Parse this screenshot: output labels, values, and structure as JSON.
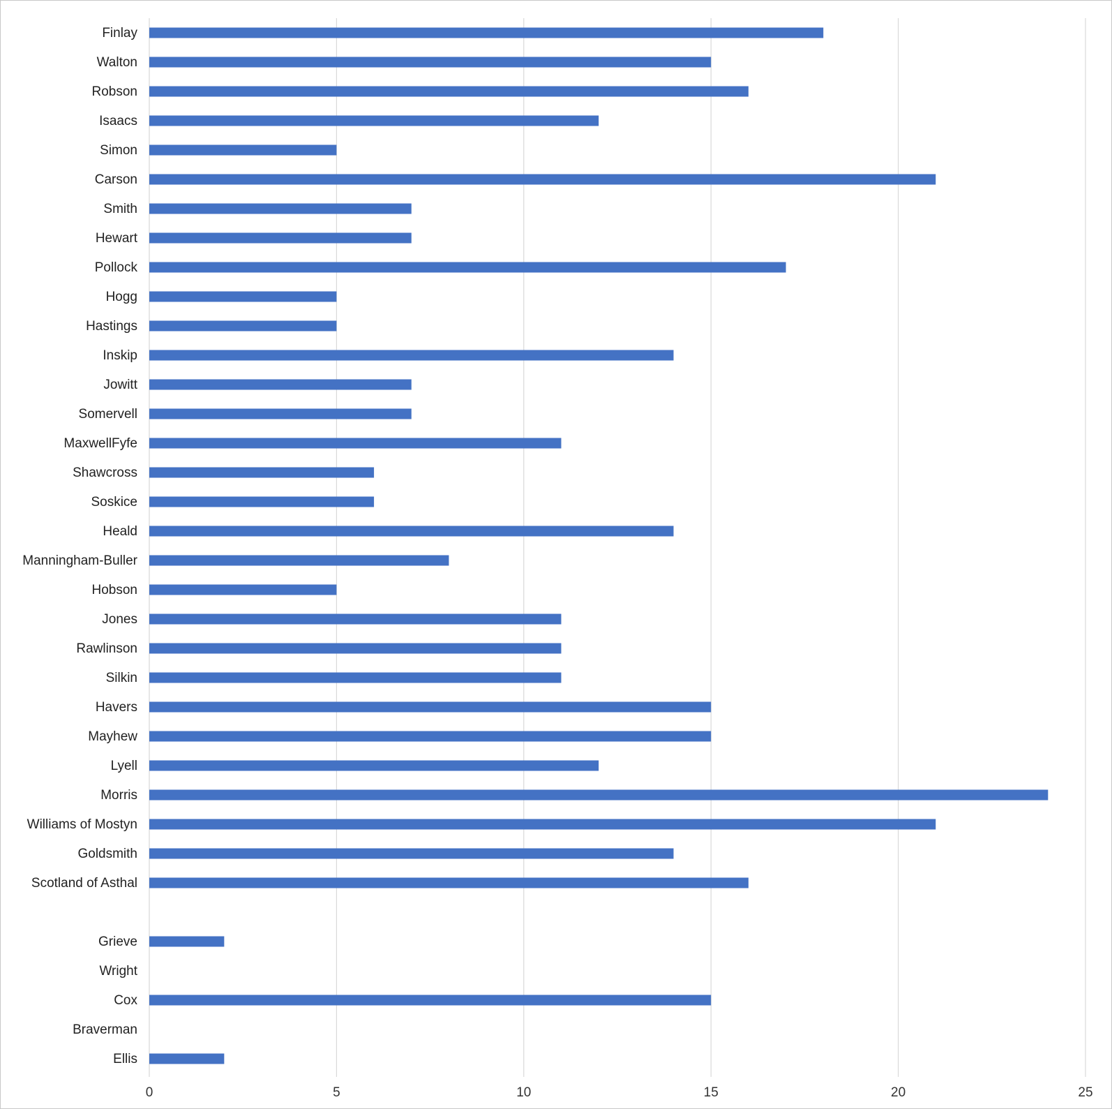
{
  "chart_data": {
    "type": "bar",
    "orientation": "horizontal",
    "categories": [
      "Finlay",
      "Walton",
      "Robson",
      "Isaacs",
      "Simon",
      "Carson",
      "Smith",
      "Hewart",
      "Pollock",
      "Hogg",
      "Hastings",
      "Inskip",
      "Jowitt",
      "Somervell",
      "MaxwellFyfe",
      "Shawcross",
      "Soskice",
      "Heald",
      "Manningham-Buller",
      "Hobson",
      "Jones",
      "Rawlinson",
      "Silkin",
      "Havers",
      "Mayhew",
      "Lyell",
      "Morris",
      "Williams of Mostyn",
      "Goldsmith",
      "Scotland of Asthal",
      "",
      "Grieve",
      "Wright",
      "Cox",
      "Braverman",
      "Ellis"
    ],
    "values": [
      18,
      15,
      16,
      12,
      5,
      21,
      7,
      7,
      17,
      5,
      5,
      14,
      7,
      7,
      11,
      6,
      6,
      14,
      8,
      5,
      11,
      11,
      11,
      15,
      15,
      12,
      24,
      21,
      14,
      16,
      null,
      2,
      0,
      15,
      0,
      2
    ],
    "xlim": [
      0,
      25
    ],
    "x_ticks": [
      "0",
      "5",
      "10",
      "15",
      "20",
      "25"
    ],
    "grid": true,
    "bar_color": "#4472c4",
    "grid_color": "#d9d9d9"
  }
}
